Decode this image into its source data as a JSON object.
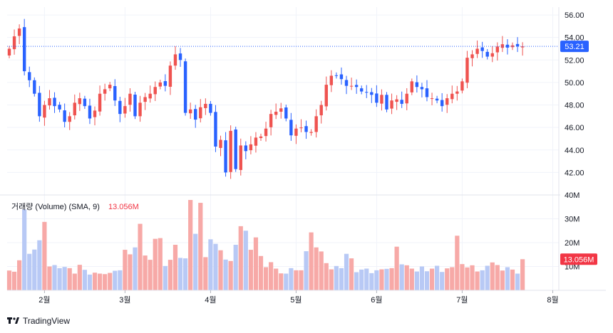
{
  "brand": {
    "name": "TradingView",
    "logo_icon": "tradingview-logo-icon"
  },
  "colors": {
    "up": "#ef5350",
    "down": "#2962ff",
    "up_vol": "#f7a9a7",
    "down_vol": "#b8c9f5",
    "last_label_bg": "#2962ff",
    "vol_label_bg": "#f23645"
  },
  "volume_legend": {
    "label": "거래량 (Volume) (SMA, 9)",
    "value": "13.056M"
  },
  "last_price_label": "53.21",
  "last_volume_label": "13.056M",
  "chart_data": [
    {
      "type": "candlestick",
      "title": "",
      "xlabel": "",
      "ylabel": "",
      "x_tick_labels": [
        "2월",
        "3월",
        "4월",
        "5월",
        "6월",
        "7월",
        "8월"
      ],
      "y_tick_labels": [
        "42.00",
        "44.00",
        "46.00",
        "48.00",
        "50.00",
        "52.00",
        "54.00",
        "56.00"
      ],
      "ylim": [
        40.0,
        56.7
      ],
      "last_price": 53.21,
      "grid": true,
      "series": [
        {
          "name": "",
          "closes": [
            53.0,
            54.1,
            54.8,
            51.0,
            50.2,
            49.0,
            47.0,
            48.0,
            48.6,
            47.9,
            47.6,
            46.5,
            47.0,
            48.2,
            48.6,
            47.9,
            46.8,
            47.5,
            49.0,
            49.4,
            49.8,
            48.4,
            47.2,
            47.9,
            49.0,
            47.0,
            48.2,
            48.7,
            49.0,
            49.6,
            50.0,
            49.7,
            51.5,
            52.5,
            52.0,
            47.3,
            47.6,
            46.7,
            47.8,
            48.1,
            47.3,
            44.3,
            44.9,
            42.0,
            45.7,
            42.3,
            44.4,
            43.9,
            44.5,
            45.1,
            45.2,
            45.9,
            47.2,
            47.4,
            47.7,
            46.8,
            45.3,
            45.9,
            46.0,
            45.6,
            45.6,
            47.0,
            48.0,
            49.8,
            50.6,
            50.6,
            50.3,
            49.7,
            49.7,
            49.6,
            49.2,
            49.1,
            48.9,
            48.2,
            48.9,
            47.6,
            48.4,
            48.5,
            48.1,
            49.0,
            50.1,
            49.6,
            49.4,
            48.7,
            48.6,
            48.4,
            47.9,
            48.6,
            49.0,
            49.2,
            50.1,
            52.2,
            52.5,
            53.0,
            52.8,
            52.3,
            52.6,
            53.2,
            53.4,
            53.1,
            53.3,
            53.2,
            53.21
          ]
        }
      ]
    },
    {
      "type": "bar",
      "title": "",
      "ylabel": "",
      "y_tick_labels": [
        "10M",
        "20M",
        "30M",
        "40M"
      ],
      "ylim": [
        0,
        40
      ],
      "series": [
        {
          "name": "거래량 (Volume)",
          "values": [
            8.3,
            7.8,
            12.6,
            33.9,
            15.3,
            17.1,
            21.0,
            28.7,
            10.0,
            10.6,
            9.3,
            9.8,
            9.3,
            7.0,
            10.7,
            8.6,
            6.6,
            7.4,
            7.0,
            6.8,
            7.3,
            8.2,
            8.4,
            17.0,
            15.1,
            18.0,
            27.9,
            14.6,
            12.8,
            21.6,
            21.9,
            10.2,
            12.8,
            19.1,
            13.6,
            13.4,
            37.9,
            23.7,
            36.7,
            13.9,
            21.4,
            19.5,
            16.8,
            12.9,
            12.3,
            19.1,
            26.9,
            25.0,
            17.0,
            22.2,
            14.4,
            9.7,
            11.8,
            9.1,
            7.1,
            7.0,
            9.3,
            8.4,
            8.4,
            16.4,
            24.3,
            18.0,
            16.3,
            11.4,
            8.8,
            10.2,
            9.3,
            15.3,
            13.4,
            7.6,
            8.7,
            9.1,
            7.2,
            8.4,
            8.8,
            9.0,
            9.3,
            18.3,
            10.9,
            10.5,
            9.1,
            7.9,
            10.0,
            8.0,
            9.1,
            10.3,
            7.7,
            9.2,
            9.7,
            22.9,
            11.0,
            9.6,
            10.5,
            7.9,
            8.4,
            10.3,
            11.7,
            10.6,
            8.3,
            9.7,
            8.7,
            7.0,
            13.056
          ]
        }
      ]
    }
  ]
}
